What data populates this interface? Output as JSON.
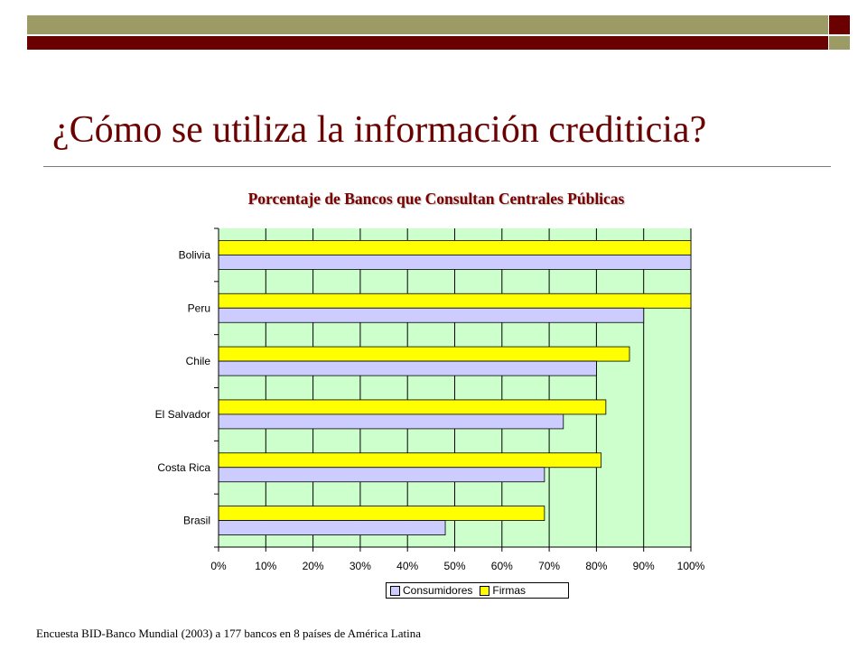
{
  "slide": {
    "title": "¿Cómo se utiliza la información crediticia?",
    "footnote": "Encuesta BID-Banco Mundial (2003) a 177 bancos en 8 países de América Latina"
  },
  "colors": {
    "title": "#6b0000",
    "chart_title": "#7a0000",
    "band_olive": "#9c9a65",
    "band_dark": "#6b0000",
    "plot_bg": "#ccffcc",
    "consumidores": "#ccccff",
    "firmas": "#ffff00"
  },
  "chart_data": {
    "type": "bar",
    "orientation": "horizontal",
    "title": "Porcentaje de Bancos que Consultan Centrales Públicas",
    "categories": [
      "Bolivia",
      "Peru",
      "Chile",
      "El Salvador",
      "Costa Rica",
      "Brasil"
    ],
    "series": [
      {
        "name": "Consumidores",
        "color": "#ccccff",
        "values": [
          100,
          90,
          80,
          73,
          69,
          48
        ]
      },
      {
        "name": "Firmas",
        "color": "#ffff00",
        "values": [
          100,
          100,
          87,
          82,
          81,
          69
        ]
      }
    ],
    "xlim": [
      0,
      100
    ],
    "x_ticks": [
      "0%",
      "10%",
      "20%",
      "30%",
      "40%",
      "50%",
      "60%",
      "70%",
      "80%",
      "90%",
      "100%"
    ],
    "grid": "vertical",
    "legend": "bottom"
  }
}
